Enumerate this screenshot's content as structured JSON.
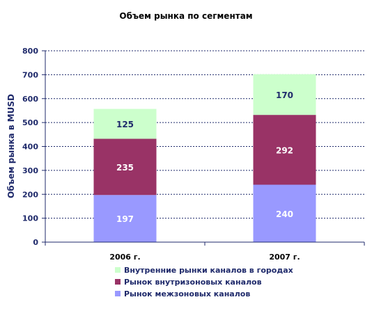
{
  "chart_data": {
    "type": "bar",
    "stacked": true,
    "title": "Объем рынка по сегментам",
    "ylabel": "Объем рынка в MUSD",
    "xlabel": "",
    "categories": [
      "2006 г.",
      "2007 г."
    ],
    "ylim": [
      0,
      800
    ],
    "yticks": [
      "0",
      "100",
      "200",
      "300",
      "400",
      "500",
      "600",
      "700",
      "800"
    ],
    "grid": "horizontal dashed",
    "legend_position": "bottom",
    "series": [
      {
        "name": "Рынок межзоновых каналов",
        "values": [
          197,
          240
        ],
        "labels": [
          "197",
          "240"
        ],
        "color": "#9999ff",
        "label_color": "#ffffff"
      },
      {
        "name": "Рынок внутризоновых каналов",
        "values": [
          235,
          292
        ],
        "labels": [
          "235",
          "292"
        ],
        "color": "#993366",
        "label_color": "#ffffff"
      },
      {
        "name": "Внутренние рынки каналов в городах",
        "values": [
          125,
          170
        ],
        "labels": [
          "125",
          "170"
        ],
        "color": "#ccffcc",
        "label_color": "#1f2a6b"
      }
    ],
    "legend_order": [
      2,
      1,
      0
    ]
  }
}
